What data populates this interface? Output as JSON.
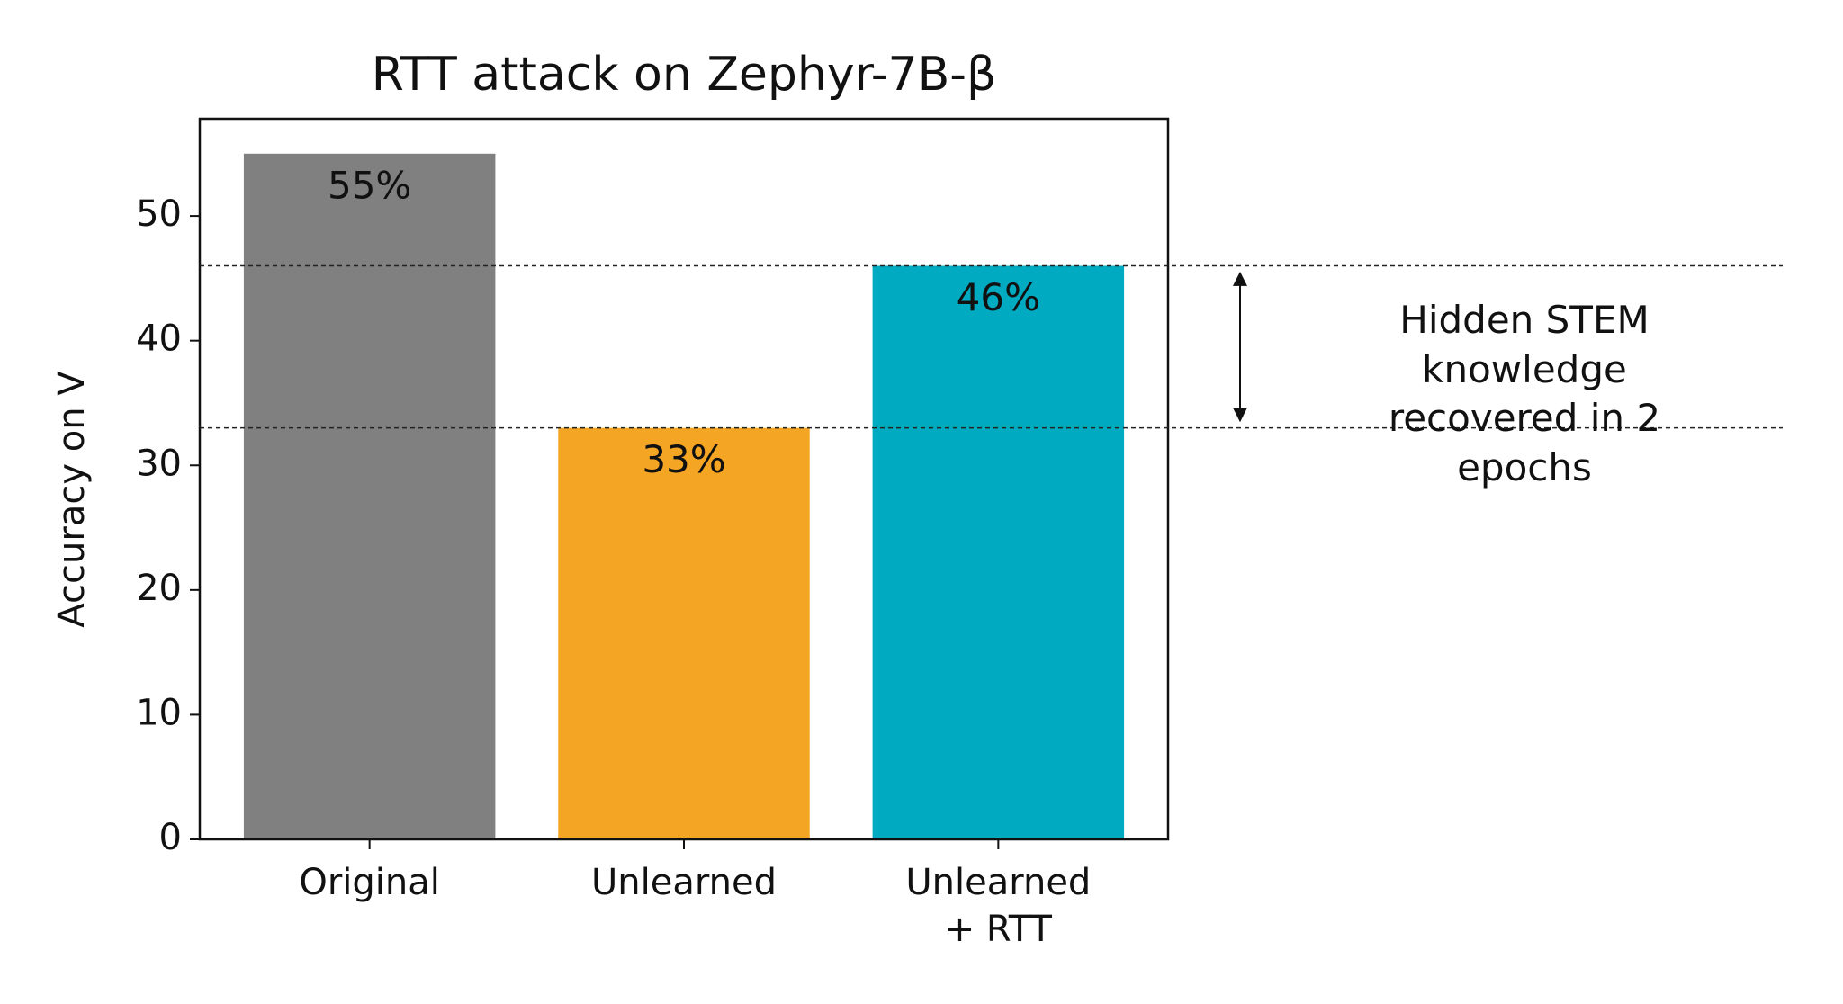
{
  "chart_data": {
    "type": "bar",
    "title": "RTT attack on Zephyr-7B-β",
    "y_label": "Accuracy on V",
    "categories": [
      "Original",
      "Unlearned",
      "Unlearned\n+ RTT"
    ],
    "values": [
      55,
      33,
      46
    ],
    "value_labels": [
      "55%",
      "33%",
      "46%"
    ],
    "colors": [
      "#808080",
      "#f4a523",
      "#00abc2"
    ],
    "ylim": [
      0,
      57.8
    ],
    "yticks": [
      0,
      10,
      20,
      30,
      40,
      50
    ],
    "reference_lines": [
      46,
      33
    ],
    "annotation": "Hidden STEM knowledge\nrecovered in 2 epochs"
  }
}
